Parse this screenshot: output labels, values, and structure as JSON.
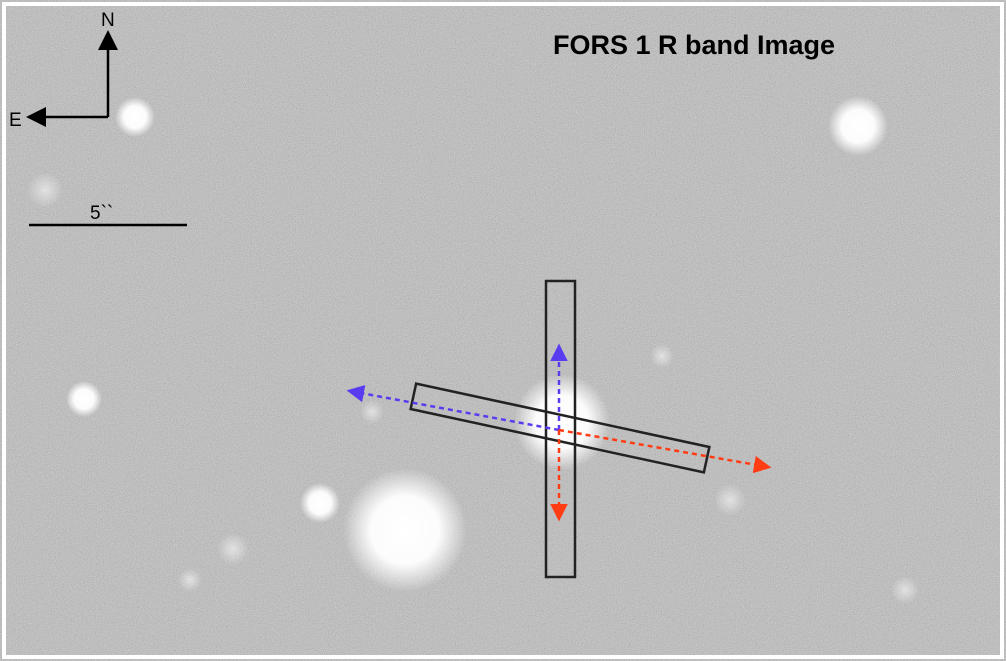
{
  "title": "FORS 1 R band Image",
  "compass": {
    "north_label": "N",
    "east_label": "E"
  },
  "scale_bar": {
    "label": "5``"
  },
  "colors": {
    "sky_background": "#8a8a8a",
    "slit_outline": "#222222",
    "arrow_blue": "#5a3cf0",
    "arrow_red": "#ff3c14",
    "compass": "#000000"
  },
  "slits": [
    {
      "name": "vertical-slit",
      "orientation": "north-south"
    },
    {
      "name": "tilted-slit",
      "orientation": "tilted"
    }
  ],
  "direction_arrows": [
    {
      "name": "blue-arrow-up",
      "color": "blue"
    },
    {
      "name": "blue-arrow-left",
      "color": "blue"
    },
    {
      "name": "red-arrow-down",
      "color": "red"
    },
    {
      "name": "red-arrow-right",
      "color": "red"
    }
  ]
}
